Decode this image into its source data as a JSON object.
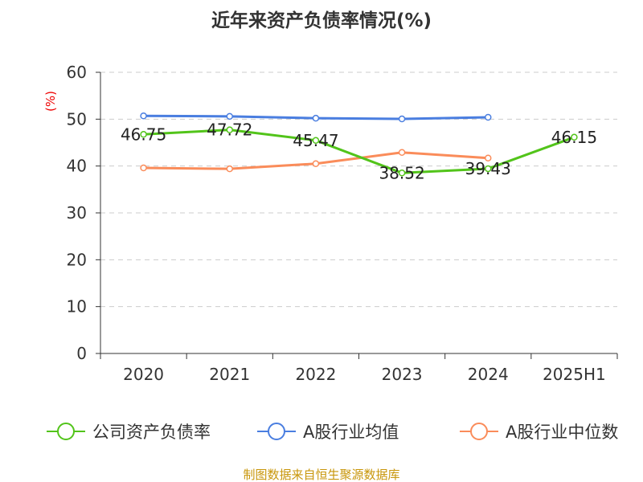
{
  "chart_data": {
    "type": "line",
    "title": "近年来资产负债率情况(%)",
    "ylabel": "(%)",
    "xlabel": "",
    "ylim": [
      0,
      60
    ],
    "yticks": [
      0,
      10,
      20,
      30,
      40,
      50,
      60
    ],
    "grid": true,
    "legend_position": "bottom",
    "categories": [
      "2020",
      "2021",
      "2022",
      "2023",
      "2024",
      "2025H1"
    ],
    "series": [
      {
        "name": "公司资产负债率",
        "color": "#52c41a",
        "values": [
          46.75,
          47.72,
          45.47,
          38.52,
          39.43,
          46.15
        ],
        "labels": [
          "46.75",
          "47.72",
          "45.47",
          "38.52",
          "39.43",
          "46.15"
        ]
      },
      {
        "name": "A股行业均值",
        "color": "#4a7ee0",
        "values": [
          50.7,
          50.6,
          50.2,
          50.05,
          50.4,
          null
        ]
      },
      {
        "name": "A股行业中位数",
        "color": "#fa8c5a",
        "values": [
          39.6,
          39.4,
          40.5,
          42.9,
          41.7,
          null
        ]
      }
    ],
    "source": "制图数据来自恒生聚源数据库"
  }
}
